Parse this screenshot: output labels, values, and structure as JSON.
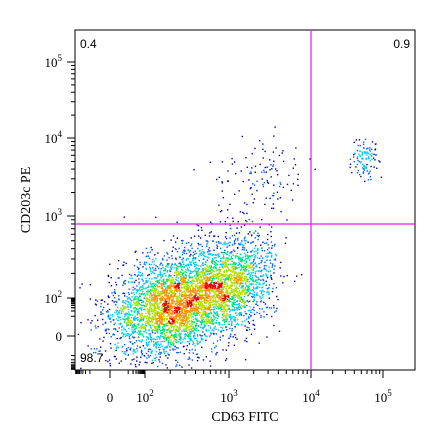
{
  "chart_data": {
    "type": "scatter",
    "title": "",
    "xlabel": "CD63 FITC",
    "ylabel": "CD203c PE",
    "x_scale": "biexponential",
    "y_scale": "biexponential",
    "x_ticks": [
      {
        "base": "0",
        "exp": ""
      },
      {
        "base": "10",
        "exp": "2"
      },
      {
        "base": "10",
        "exp": "3"
      },
      {
        "base": "10",
        "exp": "4"
      },
      {
        "base": "10",
        "exp": "5"
      }
    ],
    "y_ticks": [
      {
        "base": "0",
        "exp": ""
      },
      {
        "base": "10",
        "exp": "2"
      },
      {
        "base": "10",
        "exp": "3"
      },
      {
        "base": "10",
        "exp": "4"
      },
      {
        "base": "10",
        "exp": "5"
      }
    ],
    "quadrant_gates": {
      "x": 10000,
      "y": 800,
      "color": "#e020e0"
    },
    "quadrant_percentages": {
      "upper_left": "0.4",
      "upper_right": "0.9",
      "lower_left": "98.7",
      "lower_right": ""
    },
    "populations": [
      {
        "name": "",
        "x_center": 200,
        "y_center": 40,
        "fraction": 0.62
      },
      {
        "name": "",
        "x_center": 1000,
        "y_center": 150,
        "fraction": 0.33
      },
      {
        "name": "",
        "x_center": 2500,
        "y_center": 3500,
        "fraction": 0.01
      },
      {
        "name": "",
        "x_center": 55000,
        "y_center": 5500,
        "fraction": 0.01
      }
    ],
    "colormap": [
      "#0000b4",
      "#0060ff",
      "#00c8ff",
      "#00e080",
      "#b0e000",
      "#ff9000",
      "#e80000"
    ],
    "grid": false,
    "legend": "none"
  }
}
